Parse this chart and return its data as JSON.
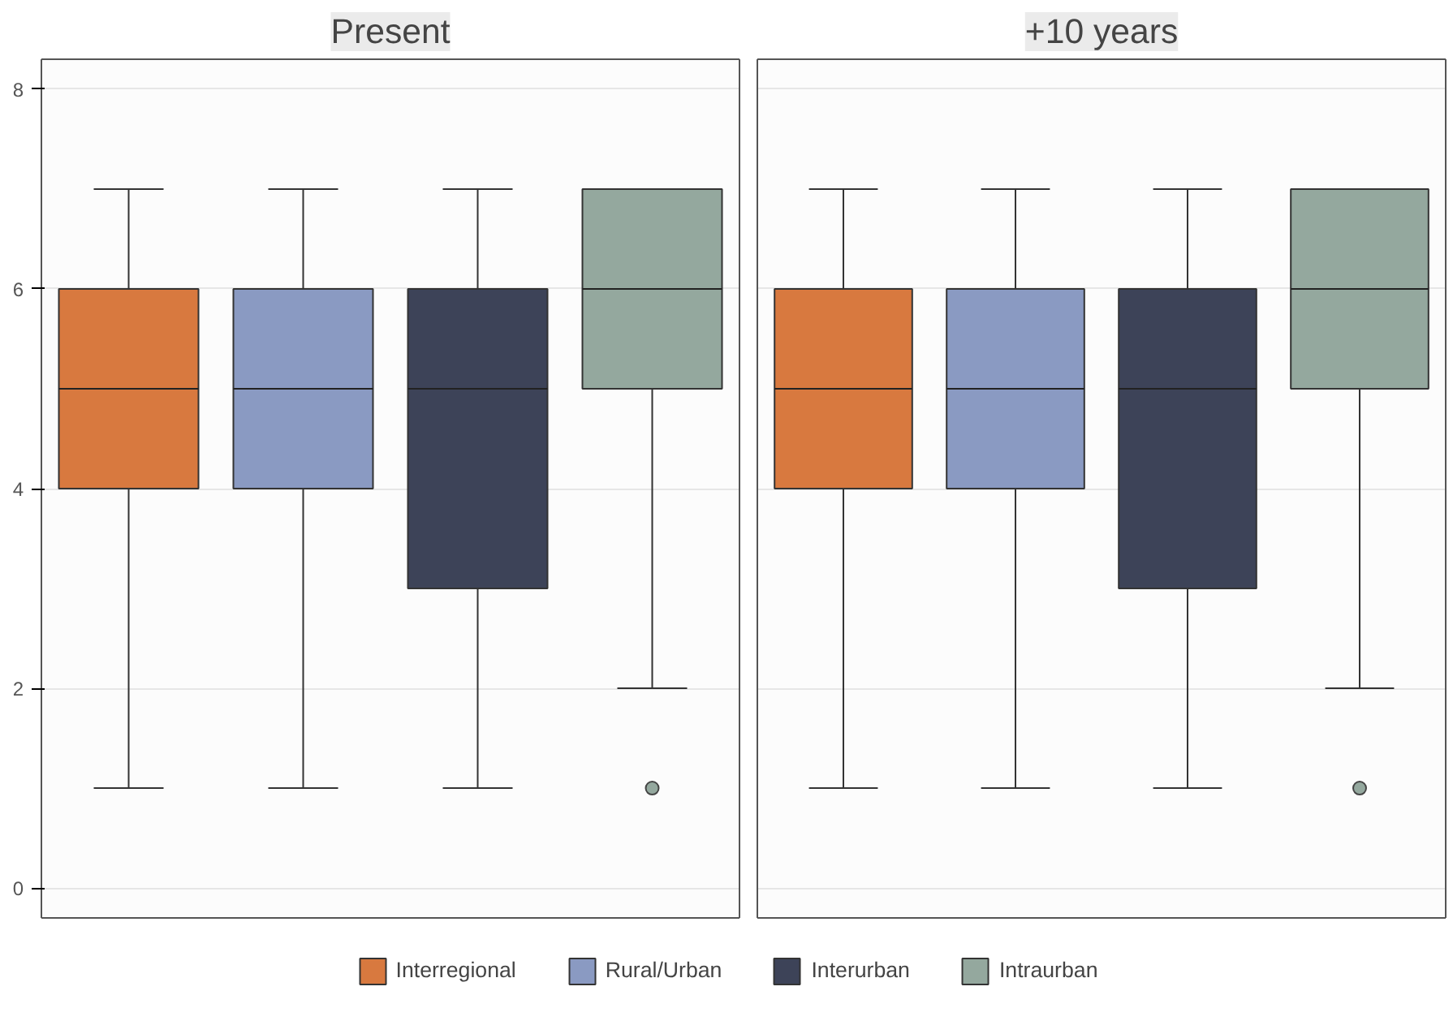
{
  "chart_data": {
    "type": "box",
    "categories": [
      "Present",
      "+10 years"
    ],
    "ylim": [
      -0.3,
      8.3
    ],
    "yticks": [
      0,
      2,
      4,
      6,
      8
    ],
    "grid": "y",
    "legend": "bottom",
    "series": [
      {
        "name": "Interregional",
        "color": "#d8793f",
        "boxes": [
          {
            "low": 1,
            "q1": 4,
            "median": 5,
            "q3": 6,
            "high": 7
          },
          {
            "low": 1,
            "q1": 4,
            "median": 5,
            "q3": 6,
            "high": 7
          }
        ]
      },
      {
        "name": "Rural/Urban",
        "color": "#8a9ac2",
        "boxes": [
          {
            "low": 1,
            "q1": 4,
            "median": 5,
            "q3": 6,
            "high": 7
          },
          {
            "low": 1,
            "q1": 4,
            "median": 5,
            "q3": 6,
            "high": 7
          }
        ]
      },
      {
        "name": "Interurban",
        "color": "#3d4358",
        "boxes": [
          {
            "low": 1,
            "q1": 3,
            "median": 5,
            "q3": 6,
            "high": 7
          },
          {
            "low": 1,
            "q1": 3,
            "median": 5,
            "q3": 6,
            "high": 7
          }
        ]
      },
      {
        "name": "Intraurban",
        "color": "#94a89e",
        "boxes": [
          {
            "low": 2,
            "q1": 5,
            "median": 6,
            "q3": 7,
            "high": 7,
            "outliers": [
              1
            ]
          },
          {
            "low": 2,
            "q1": 5,
            "median": 6,
            "q3": 7,
            "high": 7,
            "outliers": [
              1
            ]
          }
        ]
      }
    ]
  }
}
